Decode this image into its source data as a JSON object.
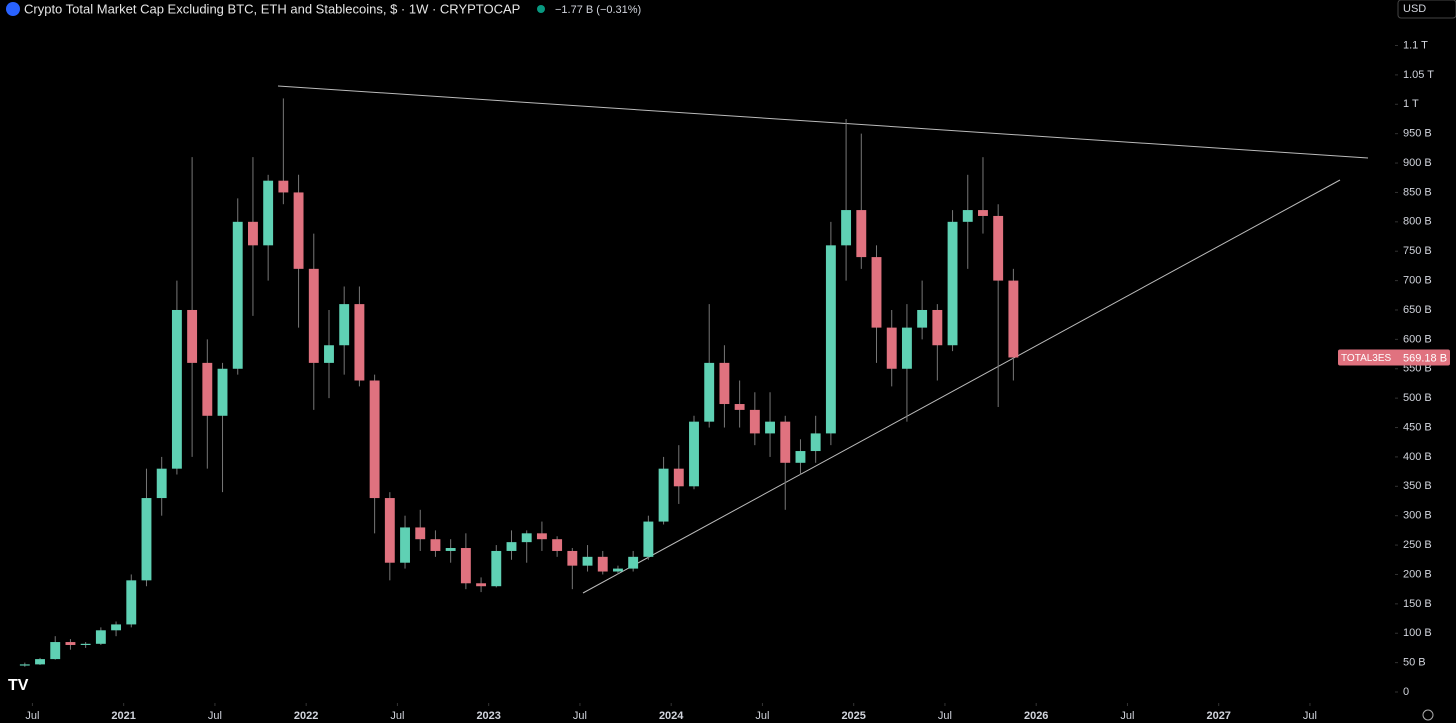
{
  "header": {
    "title": "Crypto Total Market Cap Excluding BTC, ETH and Stablecoins, $ · 1W · CRYPTOCAP",
    "change": "−1.77 B (−0.31%)",
    "currency": "USD"
  },
  "chart_data": {
    "type": "candlestick",
    "x": [
      "2020-06",
      "2020-07",
      "2020-08",
      "2020-09",
      "2020-10",
      "2020-11",
      "2020-12",
      "2021-01",
      "2021-02",
      "2021-03",
      "2021-04",
      "2021-05",
      "2021-06",
      "2021-07",
      "2021-08",
      "2021-09",
      "2021-10",
      "2021-11",
      "2021-12",
      "2022-01",
      "2022-02",
      "2022-03",
      "2022-04",
      "2022-05",
      "2022-06",
      "2022-07",
      "2022-08",
      "2022-09",
      "2022-10",
      "2022-11",
      "2022-12",
      "2023-01",
      "2023-02",
      "2023-03",
      "2023-04",
      "2023-05",
      "2023-06",
      "2023-07",
      "2023-08",
      "2023-09",
      "2023-10",
      "2023-11",
      "2023-12",
      "2024-01",
      "2024-02",
      "2024-03",
      "2024-04",
      "2024-05",
      "2024-06",
      "2024-07",
      "2024-08",
      "2024-09",
      "2024-10",
      "2024-11",
      "2024-12",
      "2025-01",
      "2025-02",
      "2025-03",
      "2025-04",
      "2025-05",
      "2025-06",
      "2025-07",
      "2025-08",
      "2025-09",
      "2025-10",
      "2025-11"
    ],
    "open": [
      45,
      47,
      56,
      85,
      80,
      82,
      105,
      115,
      190,
      330,
      380,
      650,
      560,
      470,
      550,
      800,
      760,
      870,
      850,
      720,
      560,
      590,
      660,
      530,
      330,
      220,
      280,
      260,
      240,
      245,
      185,
      180,
      240,
      255,
      270,
      260,
      240,
      215,
      230,
      205,
      210,
      230,
      290,
      380,
      350,
      460,
      560,
      490,
      480,
      440,
      460,
      390,
      410,
      440,
      760,
      820,
      740,
      620,
      550,
      620,
      650,
      590,
      800,
      820,
      810,
      700
    ],
    "high": [
      50,
      58,
      95,
      90,
      85,
      110,
      120,
      200,
      380,
      400,
      700,
      910,
      600,
      560,
      840,
      910,
      880,
      1010,
      880,
      780,
      650,
      690,
      690,
      540,
      340,
      300,
      310,
      275,
      260,
      270,
      195,
      250,
      275,
      275,
      290,
      265,
      245,
      250,
      240,
      215,
      240,
      300,
      400,
      420,
      470,
      660,
      590,
      530,
      510,
      510,
      470,
      430,
      470,
      800,
      975,
      950,
      760,
      650,
      660,
      700,
      660,
      820,
      880,
      910,
      830,
      720
    ],
    "low": [
      43,
      46,
      55,
      72,
      75,
      80,
      95,
      110,
      180,
      300,
      370,
      400,
      380,
      340,
      540,
      640,
      700,
      830,
      620,
      480,
      500,
      540,
      520,
      270,
      190,
      210,
      240,
      230,
      220,
      175,
      170,
      178,
      225,
      220,
      240,
      230,
      175,
      205,
      200,
      200,
      205,
      225,
      285,
      320,
      345,
      450,
      450,
      450,
      420,
      400,
      310,
      370,
      390,
      420,
      700,
      720,
      560,
      520,
      460,
      600,
      530,
      580,
      720,
      780,
      485,
      530
    ],
    "close": [
      47,
      56,
      85,
      80,
      82,
      105,
      115,
      190,
      330,
      380,
      650,
      560,
      470,
      550,
      800,
      760,
      870,
      850,
      720,
      560,
      590,
      660,
      530,
      330,
      220,
      280,
      260,
      240,
      245,
      185,
      180,
      240,
      255,
      270,
      260,
      240,
      215,
      230,
      205,
      210,
      230,
      290,
      380,
      350,
      460,
      560,
      490,
      480,
      440,
      460,
      390,
      410,
      440,
      760,
      820,
      740,
      620,
      550,
      620,
      650,
      590,
      800,
      820,
      810,
      700,
      569.18
    ],
    "up_color": "#5fd1b4",
    "down_color": "#e0727f",
    "xlim": [
      "2020-05",
      "2027-12"
    ],
    "xticks": [
      {
        "value": "2020-07",
        "label": "Jul"
      },
      {
        "value": "2021-01",
        "label": "2021"
      },
      {
        "value": "2021-07",
        "label": "Jul"
      },
      {
        "value": "2022-01",
        "label": "2022"
      },
      {
        "value": "2022-07",
        "label": "Jul"
      },
      {
        "value": "2023-01",
        "label": "2023"
      },
      {
        "value": "2023-07",
        "label": "Jul"
      },
      {
        "value": "2024-01",
        "label": "2024"
      },
      {
        "value": "2024-07",
        "label": "Jul"
      },
      {
        "value": "2025-01",
        "label": "2025"
      },
      {
        "value": "2025-07",
        "label": "Jul"
      },
      {
        "value": "2026-01",
        "label": "2026"
      },
      {
        "value": "2026-07",
        "label": "Jul"
      },
      {
        "value": "2027-01",
        "label": "2027"
      },
      {
        "value": "2027-07",
        "label": "Jul"
      }
    ],
    "ylim": [
      -17,
      1140
    ],
    "yticks": [
      0,
      {
        "value": 50,
        "label": "50 B"
      },
      {
        "value": 100,
        "label": "100 B"
      },
      {
        "value": 150,
        "label": "150 B"
      },
      {
        "value": 200,
        "label": "200 B"
      },
      {
        "value": 250,
        "label": "250 B"
      },
      {
        "value": 300,
        "label": "300 B"
      },
      {
        "value": 350,
        "label": "350 B"
      },
      {
        "value": 400,
        "label": "400 B"
      },
      {
        "value": 450,
        "label": "450 B"
      },
      {
        "value": 500,
        "label": "500 B"
      },
      {
        "value": 550,
        "label": "550 B"
      },
      {
        "value": 600,
        "label": "600 B"
      },
      {
        "value": 650,
        "label": "650 B"
      },
      {
        "value": 700,
        "label": "700 B"
      },
      {
        "value": 750,
        "label": "750 B"
      },
      {
        "value": 800,
        "label": "800 B"
      },
      {
        "value": 850,
        "label": "850 B"
      },
      {
        "value": 900,
        "label": "900 B"
      },
      {
        "value": 950,
        "label": "950 B"
      },
      {
        "value": 1000,
        "label": "1 T"
      },
      {
        "value": 1050,
        "label": "1.05 T"
      },
      {
        "value": 1100,
        "label": "1.1 T"
      }
    ],
    "last_price": {
      "symbol": "TOTAL3ES",
      "value": 569.18,
      "label": "569.18 B"
    }
  }
}
